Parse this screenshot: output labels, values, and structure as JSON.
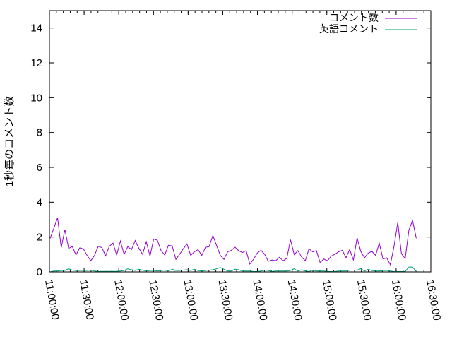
{
  "chart_data": {
    "type": "line",
    "title": "",
    "xlabel": "",
    "ylabel": "1秒毎のコメント数",
    "xlim": [
      "11:00:00",
      "16:30:00"
    ],
    "ylim": [
      0,
      15
    ],
    "x_ticks": [
      "11:00:00",
      "11:30:00",
      "12:00:00",
      "12:30:00",
      "13:00:00",
      "13:30:00",
      "14:00:00",
      "14:30:00",
      "15:00:00",
      "15:30:00",
      "16:00:00",
      "16:30:00"
    ],
    "y_ticks": [
      "0",
      "2",
      "4",
      "6",
      "8",
      "10",
      "12",
      "14"
    ],
    "grid": false,
    "legend_position": "top-right",
    "x": [
      "11:00:36",
      "11:03:48",
      "11:07:00",
      "11:10:12",
      "11:13:24",
      "11:16:36",
      "11:19:48",
      "11:23:00",
      "11:26:12",
      "11:29:24",
      "11:32:36",
      "11:35:48",
      "11:39:00",
      "11:42:12",
      "11:45:24",
      "11:48:36",
      "11:51:48",
      "11:55:00",
      "11:58:12",
      "12:01:24",
      "12:04:36",
      "12:07:48",
      "12:11:00",
      "12:14:12",
      "12:17:24",
      "12:20:36",
      "12:23:48",
      "12:27:00",
      "12:30:12",
      "12:33:24",
      "12:36:36",
      "12:39:48",
      "12:43:00",
      "12:46:12",
      "12:49:24",
      "12:52:36",
      "12:55:48",
      "12:59:00",
      "13:02:12",
      "13:05:24",
      "13:08:36",
      "13:11:48",
      "13:15:00",
      "13:18:12",
      "13:21:24",
      "13:24:36",
      "13:27:48",
      "13:31:00",
      "13:34:12",
      "13:37:24",
      "13:40:36",
      "13:43:48",
      "13:47:00",
      "13:50:12",
      "13:53:24",
      "13:56:36",
      "13:59:48",
      "14:03:00",
      "14:06:12",
      "14:09:24",
      "14:12:36",
      "14:15:48",
      "14:19:00",
      "14:22:12",
      "14:25:24",
      "14:28:36",
      "14:31:48",
      "14:35:00",
      "14:38:12",
      "14:41:24",
      "14:44:36",
      "14:47:48",
      "14:51:00",
      "14:54:12",
      "14:57:24",
      "15:00:36",
      "15:03:48",
      "15:07:00",
      "15:10:12",
      "15:13:24",
      "15:16:36",
      "15:19:48",
      "15:23:00",
      "15:26:12",
      "15:29:24",
      "15:32:36",
      "15:35:48",
      "15:39:00",
      "15:42:12",
      "15:45:24",
      "15:48:36",
      "15:51:48",
      "15:55:00",
      "15:58:12",
      "16:01:24",
      "16:04:36",
      "16:07:48",
      "16:11:00",
      "16:14:12",
      "16:17:24"
    ],
    "series": [
      {
        "name": "コメント数",
        "color": "#9400d3",
        "values": [
          1.93,
          2.5,
          3.11,
          1.39,
          2.43,
          1.35,
          1.45,
          0.97,
          1.38,
          1.32,
          0.95,
          0.64,
          0.95,
          1.47,
          1.39,
          0.92,
          1.47,
          1.66,
          0.96,
          1.77,
          1.0,
          1.45,
          1.28,
          1.8,
          1.35,
          1.01,
          1.73,
          0.91,
          1.89,
          1.82,
          1.22,
          0.97,
          1.53,
          1.49,
          0.72,
          1.01,
          1.32,
          1.61,
          0.95,
          1.15,
          1.28,
          0.95,
          1.41,
          1.45,
          2.09,
          1.53,
          0.95,
          0.72,
          1.15,
          1.24,
          1.42,
          1.22,
          1.11,
          1.22,
          0.45,
          0.72,
          1.08,
          1.24,
          1.01,
          0.61,
          0.68,
          0.64,
          0.84,
          0.64,
          0.78,
          1.85,
          0.99,
          1.22,
          0.85,
          0.64,
          1.32,
          1.15,
          1.22,
          0.54,
          0.74,
          0.64,
          0.91,
          1.01,
          1.15,
          1.24,
          0.81,
          1.28,
          0.68,
          1.96,
          1.18,
          0.81,
          1.08,
          1.18,
          0.95,
          1.65,
          0.74,
          0.81,
          0.41,
          1.49,
          2.84,
          1.04,
          0.77,
          2.39,
          2.95,
          1.93
        ]
      },
      {
        "name": "英語コメント",
        "color": "#009e73",
        "values": [
          0,
          0.05,
          0.05,
          0.08,
          0.08,
          0.18,
          0.1,
          0.08,
          0.08,
          0.08,
          0.08,
          0.1,
          0.05,
          0.02,
          0.03,
          0.03,
          0.03,
          0.03,
          0.03,
          0.05,
          0.08,
          0.18,
          0.12,
          0.08,
          0.15,
          0.1,
          0.05,
          0.08,
          0.08,
          0.05,
          0.08,
          0.1,
          0.05,
          0.15,
          0.08,
          0.08,
          0.1,
          0.12,
          0.08,
          0.15,
          0.08,
          0.05,
          0.08,
          0.1,
          0.12,
          0.18,
          0.25,
          0.15,
          0.05,
          0.05,
          0.15,
          0.12,
          0.05,
          0.05,
          0.05,
          0.02,
          0.02,
          0.05,
          0.1,
          0.08,
          0.02,
          0.05,
          0.05,
          0.05,
          0.05,
          0.08,
          0.18,
          0.05,
          0.12,
          0.05,
          0.02,
          0.1,
          0.05,
          0.05,
          0.05,
          0.02,
          0.02,
          0.02,
          0.05,
          0.05,
          0.05,
          0.1,
          0.1,
          0.1,
          0.18,
          0.05,
          0.15,
          0.08,
          0.05,
          0.05,
          0.08,
          0.08,
          0.05,
          0.02,
          0.02,
          0.02,
          0.02,
          0.28,
          0.28,
          0.02
        ]
      }
    ]
  }
}
